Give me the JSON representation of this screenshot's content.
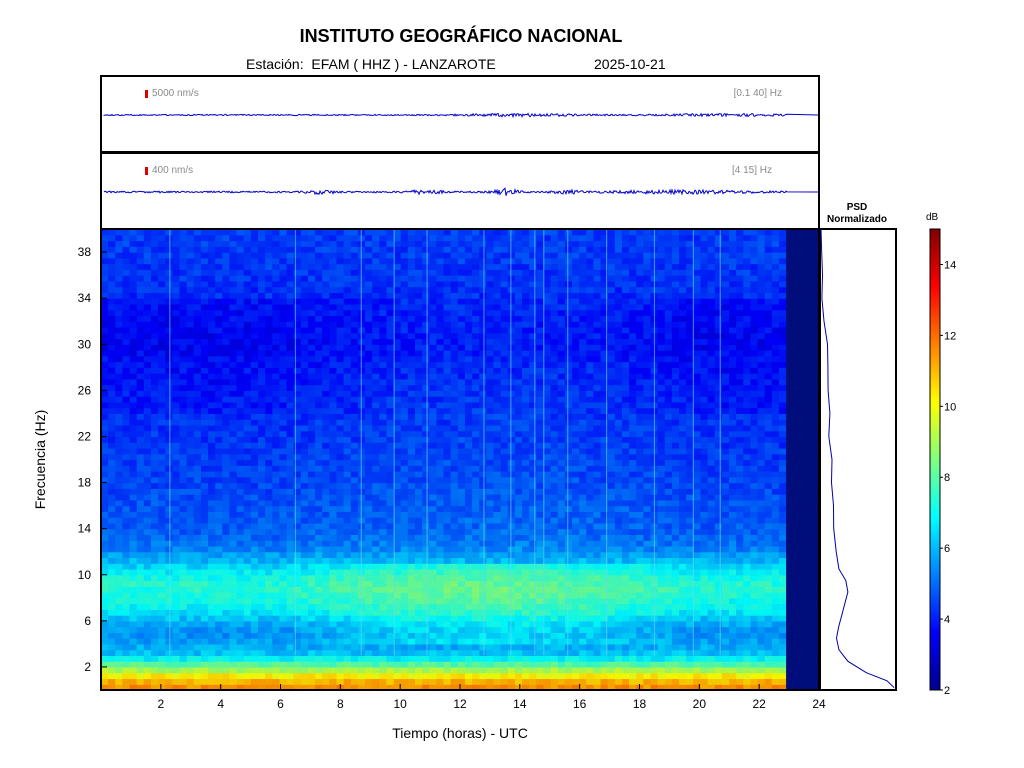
{
  "header": {
    "title": "INSTITUTO GEOGRÁFICO NACIONAL",
    "station_line": "Estación:  EFAM ( HHZ ) - LANZAROTE",
    "date": "2025-10-21"
  },
  "traces": [
    {
      "scale_label": "5000 nm/s",
      "band_label": "[0.1 40] Hz"
    },
    {
      "scale_label": "400 nm/s",
      "band_label": "[4 15] Hz"
    }
  ],
  "psd": {
    "title_line1": "PSD",
    "title_line2": "Normalizado"
  },
  "colors": {
    "trace": "#0000cc",
    "scale_marker": "#e00000",
    "no_data_fill": "#000c80"
  },
  "chart_data": {
    "type": "heatmap",
    "xlabel": "Tiempo (horas) - UTC",
    "ylabel": "Frecuencia  (Hz)",
    "xlim": [
      0,
      24
    ],
    "ylim": [
      0,
      40
    ],
    "x_ticks": [
      2,
      4,
      6,
      8,
      10,
      12,
      14,
      16,
      18,
      20,
      22,
      24
    ],
    "y_ticks": [
      2,
      6,
      10,
      14,
      18,
      22,
      26,
      30,
      34,
      38
    ],
    "data_end_hour": 22.9,
    "colorbar": {
      "label": "dB",
      "range": [
        2,
        15
      ],
      "ticks": [
        2,
        4,
        6,
        8,
        10,
        12,
        14
      ],
      "colormap": "jet"
    },
    "frequency_profile_db": [
      [
        0.2,
        11.5
      ],
      [
        1,
        10.8
      ],
      [
        2,
        8.5
      ],
      [
        3,
        6.3
      ],
      [
        4,
        5.8
      ],
      [
        5,
        5.5
      ],
      [
        6,
        6.0
      ],
      [
        7,
        6.8
      ],
      [
        8,
        7.2
      ],
      [
        9,
        7.4
      ],
      [
        10,
        7.0
      ],
      [
        11,
        6.2
      ],
      [
        12,
        5.6
      ],
      [
        13,
        5.2
      ],
      [
        14,
        5.0
      ],
      [
        16,
        4.9
      ],
      [
        18,
        4.7
      ],
      [
        20,
        4.6
      ],
      [
        22,
        4.5
      ],
      [
        24,
        4.4
      ],
      [
        26,
        4.3
      ],
      [
        28,
        4.2
      ],
      [
        30,
        4.0
      ],
      [
        32,
        4.1
      ],
      [
        34,
        4.2
      ],
      [
        36,
        4.3
      ],
      [
        38,
        4.4
      ],
      [
        40,
        4.4
      ]
    ],
    "broadband_transients_hours": [
      2.3,
      6.5,
      8.7,
      9.8,
      10.9,
      12.8,
      13.7,
      14.5,
      14.8,
      15.6,
      16.9,
      18.5,
      19.8,
      20.7
    ],
    "psd_normalized": [
      [
        0.2,
        1.0
      ],
      [
        0.8,
        0.9
      ],
      [
        1.5,
        0.62
      ],
      [
        2.5,
        0.35
      ],
      [
        3.5,
        0.24
      ],
      [
        4.5,
        0.2
      ],
      [
        5.5,
        0.22
      ],
      [
        6.5,
        0.29
      ],
      [
        7.5,
        0.31
      ],
      [
        8.5,
        0.36
      ],
      [
        9.5,
        0.33
      ],
      [
        10.5,
        0.26
      ],
      [
        12,
        0.2
      ],
      [
        14,
        0.18
      ],
      [
        16,
        0.17
      ],
      [
        18,
        0.15
      ],
      [
        20,
        0.14
      ],
      [
        22,
        0.12
      ],
      [
        24,
        0.11
      ],
      [
        26,
        0.09
      ],
      [
        28,
        0.08
      ],
      [
        30,
        0.07
      ],
      [
        32,
        0.05
      ],
      [
        34,
        0.03
      ],
      [
        36,
        0.02
      ],
      [
        38,
        0.01
      ],
      [
        40,
        0.0
      ]
    ]
  }
}
